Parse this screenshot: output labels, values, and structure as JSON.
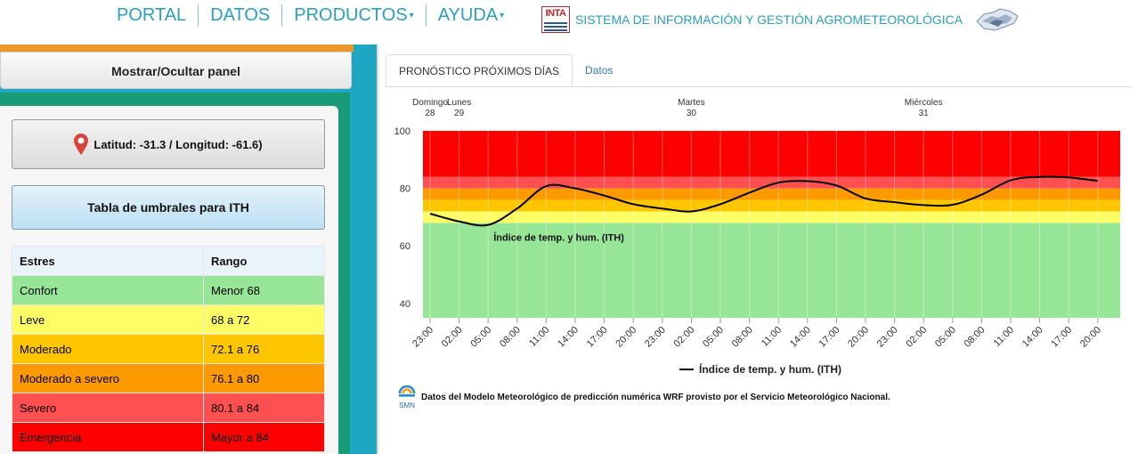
{
  "nav": {
    "items": [
      {
        "label": "PORTAL",
        "dropdown": false
      },
      {
        "label": "DATOS",
        "dropdown": false
      },
      {
        "label": "PRODUCTOS",
        "dropdown": true
      },
      {
        "label": "AYUDA",
        "dropdown": true
      }
    ],
    "logo_text": "INTA",
    "site_title": "SISTEMA DE INFORMACIÓN Y GESTIÓN AGROMETEOROLÓGICA"
  },
  "left_panel": {
    "toggle_label": "Mostrar/Ocultar panel",
    "coords_label": "Latitud: -31.3 / Longitud: -61.6)",
    "thresholds_button": "Tabla de umbrales para ITH",
    "table": {
      "headers": [
        "Estres",
        "Rango"
      ],
      "rows": [
        {
          "label": "Confort",
          "range": "Menor 68",
          "color": "#97e597"
        },
        {
          "label": "Leve",
          "range": "68 a 72",
          "color": "#fdfd66"
        },
        {
          "label": "Moderado",
          "range": "72.1 a 76",
          "color": "#fec600"
        },
        {
          "label": "Moderado a severo",
          "range": "76.1 a 80",
          "color": "#fd9a00"
        },
        {
          "label": "Severo",
          "range": "80.1 a 84",
          "color": "#fe5050"
        },
        {
          "label": "Emergencia",
          "range": "Mayor a 84",
          "color": "#fd0000"
        }
      ]
    }
  },
  "tabs": [
    {
      "label": "PRONÓSTICO PRÓXIMOS DÍAS",
      "active": true
    },
    {
      "label": "Datos",
      "active": false
    }
  ],
  "chart_data": {
    "type": "line",
    "series": [
      {
        "name": "Índice de temp. y hum. (ITH)",
        "color": "#000000",
        "x": [
          "23:00",
          "02:00",
          "05:00",
          "08:00",
          "11:00",
          "14:00",
          "17:00",
          "20:00",
          "23:00",
          "02:00",
          "05:00",
          "08:00",
          "11:00",
          "14:00",
          "17:00",
          "20:00",
          "23:00",
          "02:00",
          "05:00",
          "08:00",
          "11:00",
          "14:00",
          "17:00",
          "20:00"
        ],
        "values": [
          71.2,
          68.5,
          67.3,
          73.0,
          80.8,
          80.0,
          77.5,
          74.5,
          73.0,
          72.0,
          74.5,
          78.5,
          82.0,
          82.5,
          81.0,
          76.5,
          75.2,
          74.2,
          74.3,
          77.8,
          82.8,
          84.0,
          83.8,
          82.6
        ]
      }
    ],
    "day_labels": [
      {
        "name": "Domingo",
        "num": "28",
        "index": 0
      },
      {
        "name": "Lunes",
        "num": "29",
        "index": 1
      },
      {
        "name": "Martes",
        "num": "30",
        "index": 9
      },
      {
        "name": "Miércoles",
        "num": "31",
        "index": 17
      }
    ],
    "yticks": [
      100,
      80,
      60,
      40
    ],
    "ylim": [
      35,
      100
    ],
    "bands": [
      {
        "from": 35,
        "to": 68,
        "color": "#97e597"
      },
      {
        "from": 68,
        "to": 72,
        "color": "#fdfd66"
      },
      {
        "from": 72,
        "to": 76,
        "color": "#fec600"
      },
      {
        "from": 76,
        "to": 80,
        "color": "#fd9a00"
      },
      {
        "from": 80,
        "to": 84,
        "color": "#fe5050"
      },
      {
        "from": 84,
        "to": 100,
        "color": "#fd0000"
      }
    ],
    "series_annotation": "Índice de temp. y hum. (ITH)",
    "legend": "bottom-center"
  },
  "credit": "Datos del Modelo Meteorológico de predicción numérica WRF provisto por el Servicio Meteorológico Nacional.",
  "smn_label": "SMN"
}
